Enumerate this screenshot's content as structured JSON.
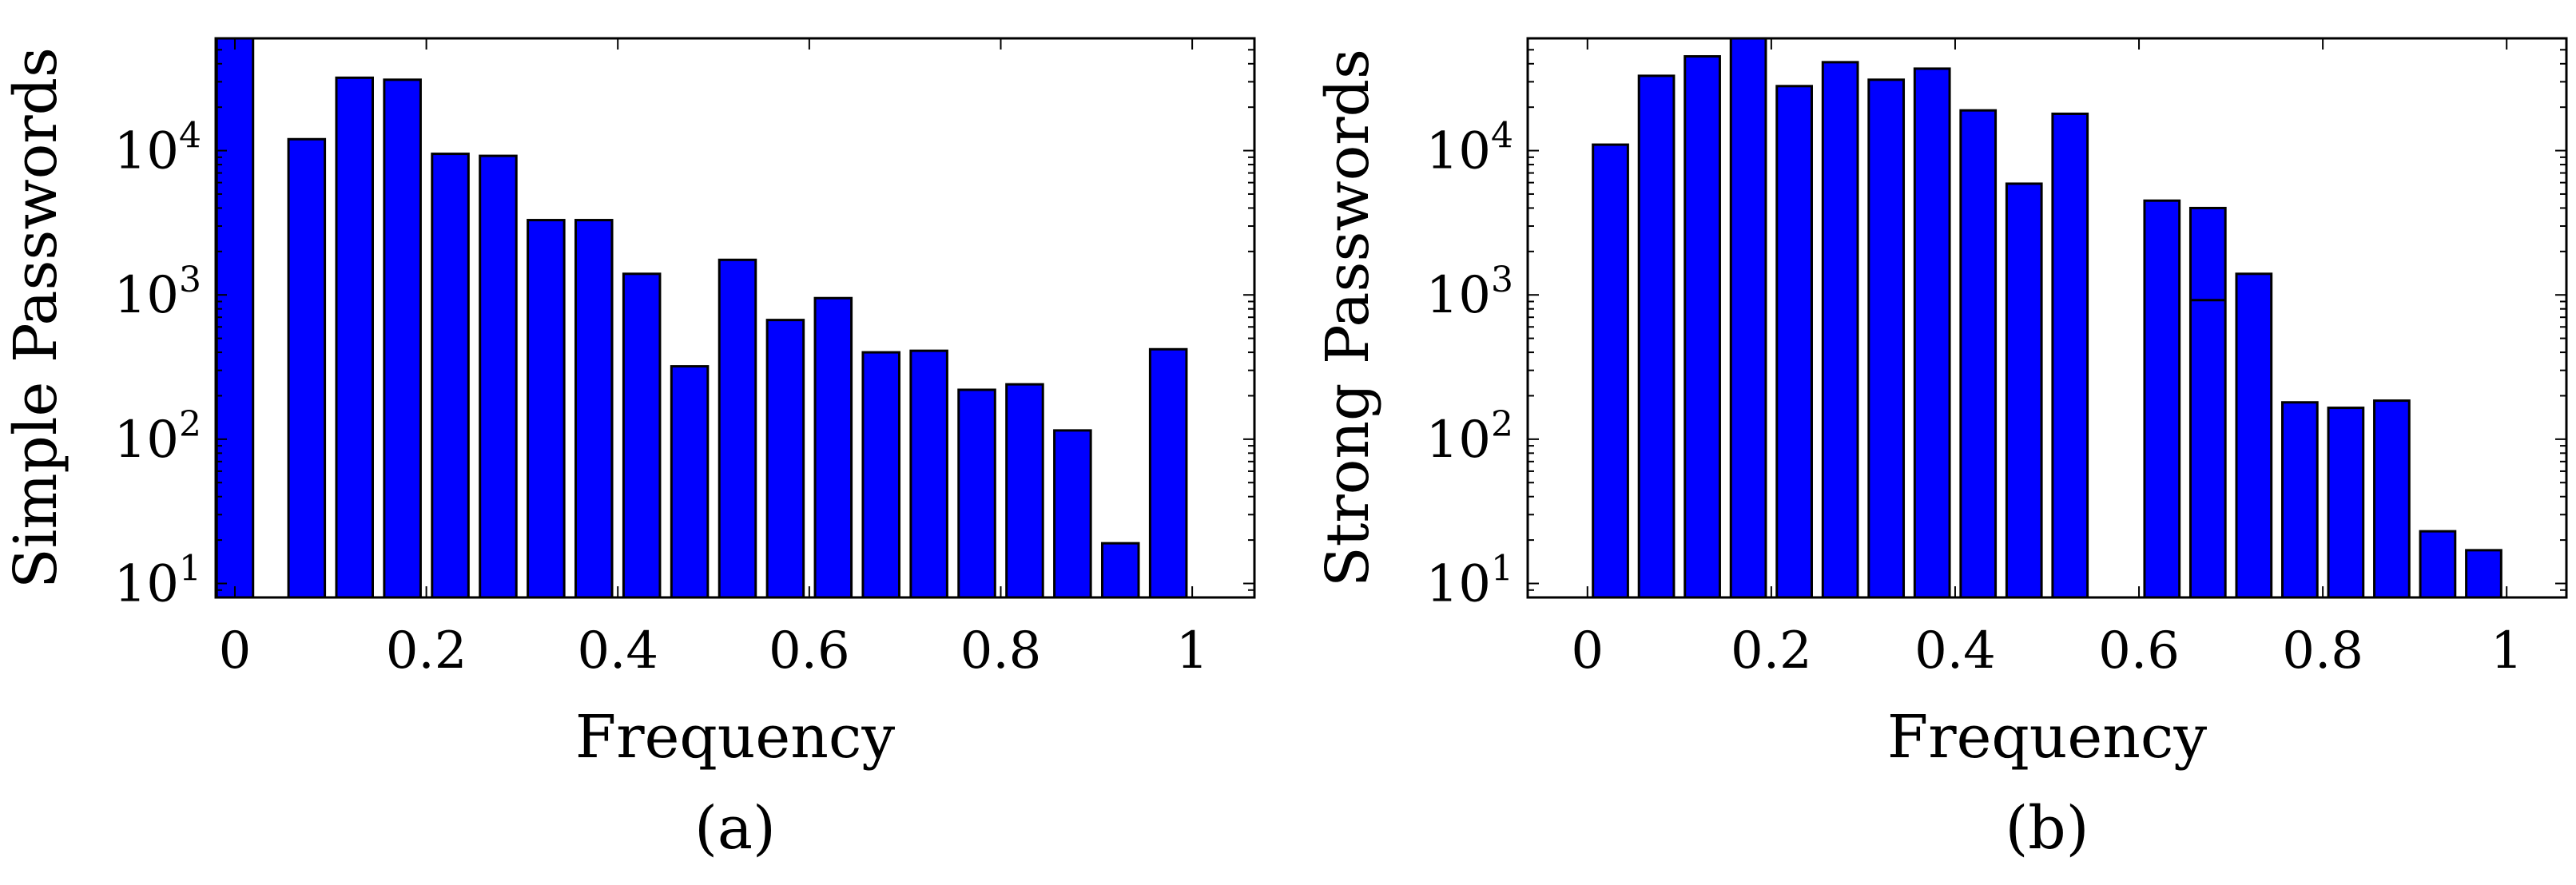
{
  "figure": {
    "panels": [
      "(a)",
      "(b)"
    ]
  },
  "chart_data": [
    {
      "type": "bar",
      "panel_label": "(a)",
      "xlabel": "Frequency",
      "ylabel": "Simple Passwords",
      "yscale": "log",
      "xlim": [
        -0.02,
        1.065
      ],
      "ylim": [
        8,
        60000
      ],
      "xticks": [
        0,
        0.2,
        0.4,
        0.6,
        0.8,
        1
      ],
      "xtick_labels": [
        "0",
        "0.2",
        "0.4",
        "0.6",
        "0.8",
        "1"
      ],
      "yticks": [
        10,
        100,
        1000,
        10000
      ],
      "ytick_labels": [
        {
          "base": "10",
          "exp": "1"
        },
        {
          "base": "10",
          "exp": "2"
        },
        {
          "base": "10",
          "exp": "3"
        },
        {
          "base": "10",
          "exp": "4"
        }
      ],
      "bar_width": 0.038,
      "x": [
        0.0,
        0.075,
        0.125,
        0.175,
        0.225,
        0.275,
        0.325,
        0.375,
        0.425,
        0.475,
        0.525,
        0.575,
        0.625,
        0.675,
        0.725,
        0.775,
        0.825,
        0.875,
        0.925,
        0.975
      ],
      "values": [
        60000,
        12000,
        32000,
        31000,
        9500,
        9200,
        3300,
        3300,
        1400,
        320,
        1750,
        670,
        950,
        400,
        410,
        220,
        240,
        115,
        19,
        420
      ],
      "bar_color": "#0000ff",
      "edge_color": "#000000",
      "grid": false
    },
    {
      "type": "bar",
      "panel_label": "(b)",
      "xlabel": "Frequency",
      "ylabel": "Strong Passwords",
      "yscale": "log",
      "xlim": [
        -0.065,
        1.065
      ],
      "ylim": [
        8,
        60000
      ],
      "xticks": [
        0,
        0.2,
        0.4,
        0.6,
        0.8,
        1
      ],
      "xtick_labels": [
        "0",
        "0.2",
        "0.4",
        "0.6",
        "0.8",
        "1"
      ],
      "yticks": [
        10,
        100,
        1000,
        10000
      ],
      "ytick_labels": [
        {
          "base": "10",
          "exp": "1"
        },
        {
          "base": "10",
          "exp": "2"
        },
        {
          "base": "10",
          "exp": "3"
        },
        {
          "base": "10",
          "exp": "4"
        }
      ],
      "bar_width": 0.038,
      "x": [
        0.025,
        0.075,
        0.125,
        0.175,
        0.225,
        0.275,
        0.325,
        0.375,
        0.425,
        0.475,
        0.525,
        0.625,
        0.675,
        0.725,
        0.775,
        0.825,
        0.875,
        0.925,
        0.975
      ],
      "values": [
        11000,
        33000,
        45000,
        60000,
        28000,
        41000,
        31000,
        37000,
        19000,
        5900,
        18000,
        4500,
        4000,
        1400,
        180,
        165,
        185,
        23,
        17
      ],
      "inner_marks": [
        {
          "x": 0.675,
          "value": 920
        }
      ],
      "bar_color": "#0000ff",
      "edge_color": "#000000",
      "grid": false
    }
  ]
}
